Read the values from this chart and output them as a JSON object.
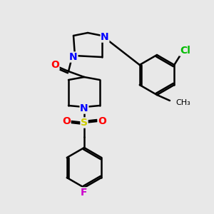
{
  "bg_color": "#e8e8e8",
  "bond_color": "#000000",
  "bond_lw": 1.8,
  "atom_colors": {
    "N": "#0000ff",
    "O": "#ff0000",
    "S": "#cccc00",
    "F": "#cc00cc",
    "Cl": "#00bb00",
    "C": "#000000"
  },
  "font_size": 9,
  "figsize": [
    3.0,
    3.0
  ],
  "dpi": 100
}
